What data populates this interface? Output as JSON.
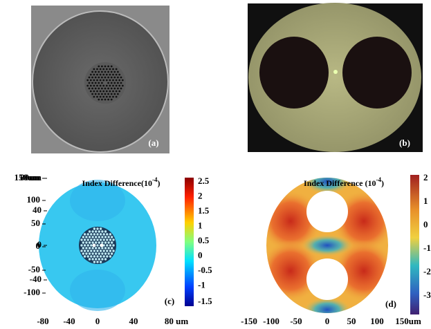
{
  "panels": [
    {
      "label": "(a)"
    },
    {
      "label": "(b)"
    },
    {
      "label": "(c)",
      "title": "Index Difference(10",
      "title_exp": "-4",
      "title_end": ")",
      "yticks": [
        "80um",
        "40",
        "0",
        "-40"
      ],
      "xticks": [
        "-80",
        "-40",
        "0",
        "40",
        "80 um"
      ],
      "colorbar_ticks": [
        "2.5",
        "2",
        "1.5",
        "1",
        "0.5",
        "0",
        "-0.5",
        "-1",
        "-1.5"
      ]
    },
    {
      "label": "(d)",
      "title": "Index Difference (10",
      "title_exp": "-4",
      "title_end": ")",
      "yticks": [
        "150um",
        "100",
        "50",
        "0",
        "-50",
        "-100"
      ],
      "xticks": [
        "-150",
        "-100",
        "-50",
        "0",
        "50",
        "100",
        "150um"
      ],
      "colorbar_ticks": [
        "2",
        "1",
        "0",
        "-1",
        "-2",
        "-3"
      ]
    }
  ]
}
